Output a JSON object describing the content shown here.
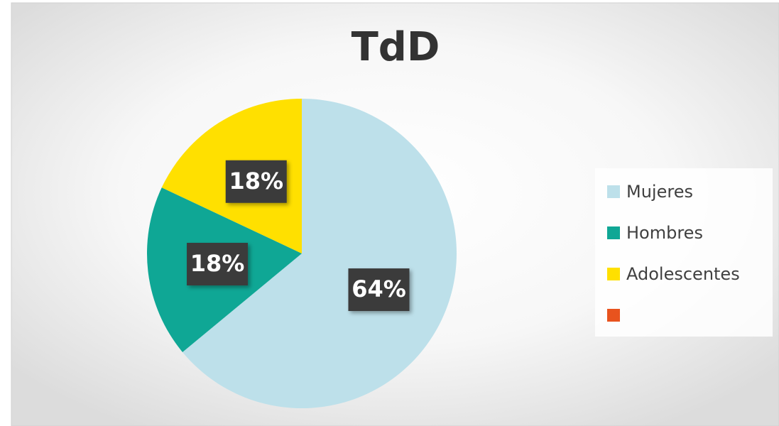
{
  "chart_data": {
    "type": "pie",
    "title": "TdD",
    "categories": [
      "Mujeres",
      "Hombres",
      "Adolescentes",
      null
    ],
    "values": [
      64,
      18,
      18,
      0
    ],
    "value_labels": [
      "64%",
      "18%",
      "18%",
      null
    ],
    "colors": [
      "#bde0ea",
      "#0fa795",
      "#ffe000",
      "#e8531e"
    ],
    "legend": "right"
  }
}
